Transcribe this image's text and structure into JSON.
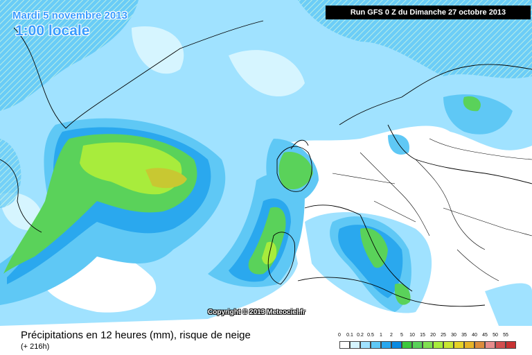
{
  "header": {
    "date": "Mardi 5 novembre 2013",
    "time": "1:00 locale",
    "run": "Run GFS 0 Z du Dimanche 27 octobre 2013"
  },
  "copyright": "Copyright © 2013 Meteociel.fr",
  "footer": {
    "title": "Précipitations en 12 heures (mm), risque de neige",
    "subtitle": "(+ 216h)"
  },
  "legend": {
    "ticks": [
      "0",
      "0.1",
      "0.2",
      "0.5",
      "1",
      "2",
      "5",
      "10",
      "15",
      "20",
      "25",
      "30",
      "35",
      "40",
      "45",
      "50",
      "55"
    ],
    "colors": [
      "#ffffff",
      "#d6f5ff",
      "#a0e2ff",
      "#5fc8f5",
      "#2aa8ee",
      "#0a8ae0",
      "#3cc83c",
      "#5ad25a",
      "#80e050",
      "#a8ec3c",
      "#c8e632",
      "#e6d228",
      "#e6b428",
      "#dc8c3c",
      "#e68c8c",
      "#d25050",
      "#c83232"
    ]
  },
  "colors": {
    "light": "#d6f5ff",
    "pale": "#a0e2ff",
    "mid": "#5fc8f5",
    "strong": "#2aa8ee",
    "green_light": "#a8ec3c",
    "green": "#5ad25a",
    "green_dark": "#3cc83c",
    "yellow": "#c8c832"
  }
}
